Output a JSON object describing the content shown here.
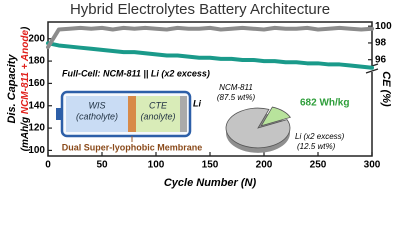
{
  "chart_data": [
    {
      "type": "line",
      "title": "Hybrid Electrolytes Battery Architecture",
      "x_label": "Cycle Number (N)",
      "y_label": "Dis. Capacity",
      "y_label_unit_parts": [
        "(mAh/g ",
        "NCM-811 + Anode",
        ")"
      ],
      "y2_label": "CE (%)",
      "x": [
        0,
        10,
        20,
        30,
        40,
        50,
        60,
        70,
        80,
        90,
        100,
        110,
        120,
        130,
        140,
        150,
        160,
        170,
        180,
        190,
        200,
        210,
        220,
        230,
        240,
        250,
        260,
        270,
        280,
        290,
        300
      ],
      "xlim": [
        0,
        300
      ],
      "xticks": [
        0,
        50,
        100,
        150,
        200,
        250,
        300
      ],
      "ylim": [
        95,
        215
      ],
      "yticks": [
        100,
        120,
        140,
        160,
        180,
        200
      ],
      "y2lim": [
        84.5,
        100.5
      ],
      "y2ticks": [
        96,
        98,
        100
      ],
      "series": [
        {
          "color": "#1a9a8a",
          "axis": "y",
          "values": [
            196,
            194,
            193,
            192,
            191,
            190,
            189,
            188,
            188,
            187,
            186,
            185,
            185,
            184,
            183,
            183,
            182,
            182,
            181,
            181,
            180,
            180,
            179,
            179,
            178,
            178,
            177,
            177,
            176,
            175,
            174
          ]
        },
        {
          "color": "#8c8c8c",
          "axis": "y2",
          "values": [
            97.5,
            99.6,
            99.7,
            99.8,
            99.7,
            99.8,
            99.6,
            99.8,
            99.7,
            99.8,
            99.7,
            99.6,
            99.8,
            99.7,
            99.7,
            99.8,
            99.6,
            99.7,
            99.8,
            99.7,
            99.6,
            99.8,
            99.7,
            99.7,
            99.8,
            99.6,
            99.7,
            99.8,
            99.7,
            99.6,
            99.7
          ]
        }
      ],
      "annotations": {
        "cell": "Full-Cell: NCM-811 || Li (x2 excess)",
        "catholyte": "WIS",
        "catholyte_sub": "(catholyte)",
        "anolyte": "CTE",
        "anolyte_sub": "(anolyte)",
        "anode": "Li",
        "membrane": "Dual Super-lyophobic Membrane"
      }
    },
    {
      "type": "pie",
      "categories": [
        "NCM-811",
        "Li (x2 excess)"
      ],
      "values": [
        87.5,
        12.5
      ],
      "value_labels": [
        "(87.5 wt%)",
        "(12.5 wt%)"
      ],
      "colors": [
        "#c4c4c4",
        "#b8e39c"
      ],
      "annotation": "682 Wh/kg",
      "annotation_color": "#2e9e3a"
    }
  ]
}
